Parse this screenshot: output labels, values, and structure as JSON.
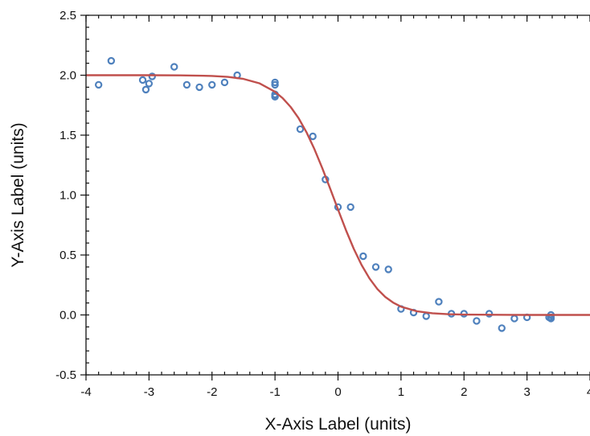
{
  "chart_data": {
    "type": "scatter",
    "xlabel": "X-Axis Label (units)",
    "ylabel": "Y-Axis Label (units)",
    "xlim": [
      -4,
      4
    ],
    "ylim": [
      -0.5,
      2.5
    ],
    "x_ticks": [
      -4,
      -3,
      -2,
      -1,
      0,
      1,
      2,
      3,
      4
    ],
    "x_tick_labels": [
      "-4",
      "-3",
      "-2",
      "-1",
      "0",
      "1",
      "2",
      "3",
      "4"
    ],
    "y_ticks": [
      -0.5,
      0.0,
      0.5,
      1.0,
      1.5,
      2.0,
      2.5
    ],
    "y_tick_labels": [
      "-0.5",
      "0.0",
      "0.5",
      "1.0",
      "1.5",
      "2.0",
      "2.5"
    ],
    "x_minor_step": 0.2,
    "y_minor_step": 0.1,
    "grid": false,
    "series": [
      {
        "type": "scatter",
        "color": "#4f81bd",
        "marker": "open-circle",
        "x": [
          -3.8,
          -3.6,
          -3.1,
          -3.05,
          -3.0,
          -2.95,
          -2.6,
          -2.4,
          -2.2,
          -2.0,
          -1.8,
          -1.6,
          -1.0,
          -1.0,
          -1.0,
          -1.0,
          -1.0,
          -0.6,
          -0.4,
          -0.2,
          0.0,
          0.2,
          0.4,
          0.6,
          0.8,
          1.0,
          1.2,
          1.4,
          1.6,
          1.8,
          2.0,
          2.2,
          2.4,
          2.6,
          2.8,
          3.0,
          3.35,
          3.38,
          3.38,
          3.38
        ],
        "y": [
          1.92,
          2.12,
          1.96,
          1.88,
          1.93,
          1.99,
          2.07,
          1.92,
          1.9,
          1.92,
          1.94,
          2.0,
          1.94,
          1.92,
          1.84,
          1.83,
          1.82,
          1.55,
          1.49,
          1.13,
          0.9,
          0.9,
          0.49,
          0.4,
          0.38,
          0.05,
          0.02,
          -0.01,
          0.11,
          0.01,
          0.01,
          -0.05,
          0.01,
          -0.11,
          -0.03,
          -0.02,
          -0.02,
          0.0,
          -0.02,
          -0.03
        ]
      },
      {
        "type": "line",
        "color": "#c0504d",
        "x": [
          -4.0,
          -3.5,
          -3.0,
          -2.5,
          -2.0,
          -1.75,
          -1.5,
          -1.25,
          -1.0,
          -0.875,
          -0.75,
          -0.625,
          -0.5,
          -0.375,
          -0.25,
          -0.125,
          0.0,
          0.125,
          0.25,
          0.375,
          0.5,
          0.625,
          0.75,
          0.875,
          1.0,
          1.25,
          1.5,
          1.75,
          2.0,
          2.5,
          3.0,
          3.5,
          4.0
        ],
        "y": [
          2.0,
          2.0,
          2.0,
          1.999,
          1.994,
          1.986,
          1.969,
          1.933,
          1.862,
          1.807,
          1.734,
          1.641,
          1.524,
          1.384,
          1.225,
          1.055,
          0.88,
          0.709,
          0.552,
          0.416,
          0.304,
          0.216,
          0.15,
          0.103,
          0.069,
          0.031,
          0.014,
          0.006,
          0.003,
          0.001,
          0.0,
          0.0,
          0.0
        ]
      }
    ]
  }
}
